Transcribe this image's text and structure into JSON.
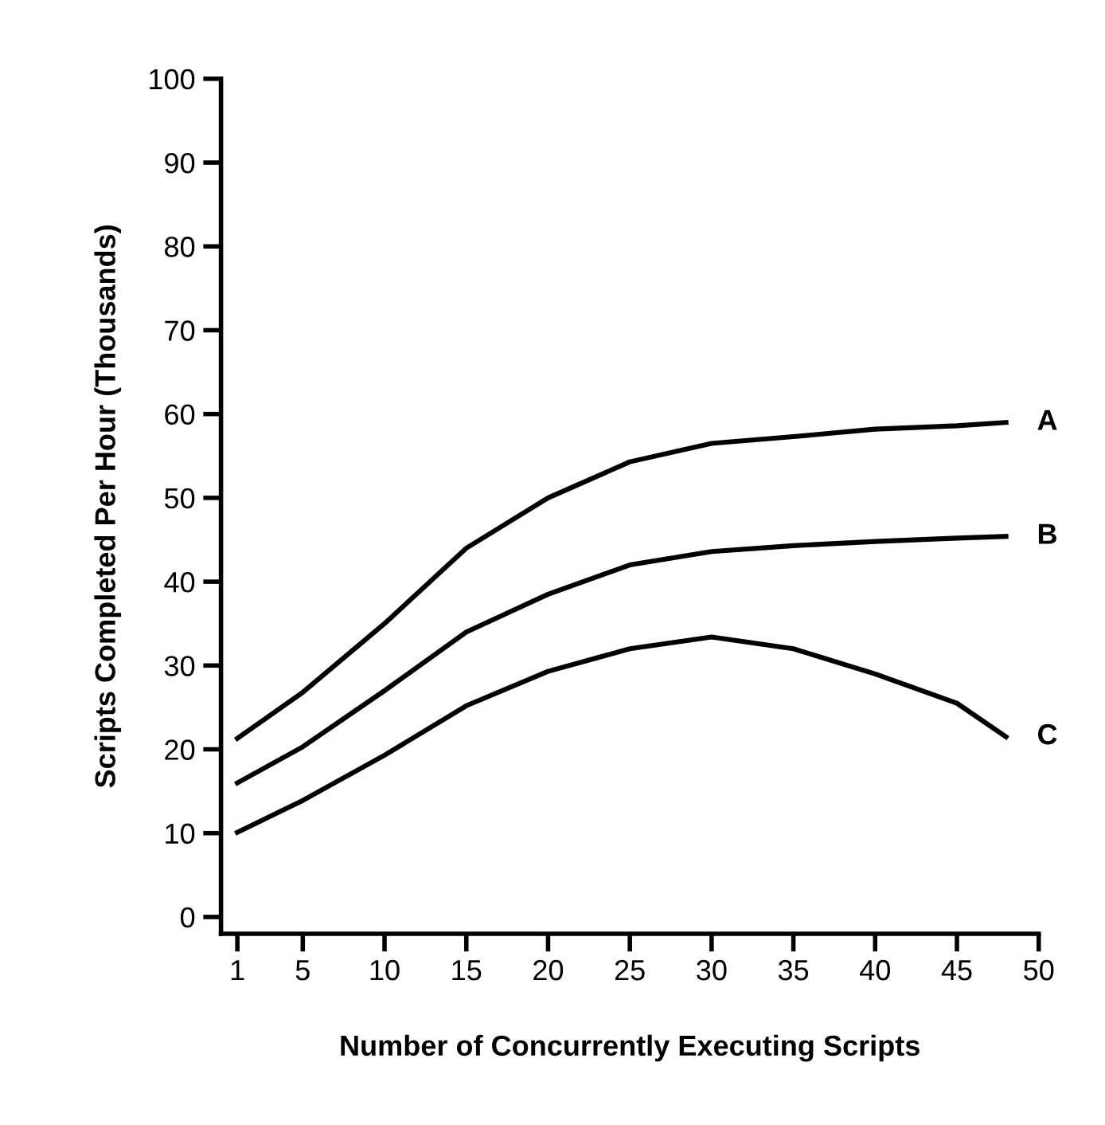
{
  "chart_data": {
    "type": "line",
    "xlabel": "Number of Concurrently Executing Scripts",
    "ylabel": "Scripts Completed Per Hour (Thousands)",
    "x": [
      1,
      5,
      10,
      15,
      20,
      25,
      30,
      35,
      40,
      45,
      48
    ],
    "series": [
      {
        "name": "A",
        "color": "#000000",
        "values": [
          21.3,
          26.8,
          35,
          44,
          50,
          54.3,
          56.5,
          57.3,
          58.2,
          58.6,
          59
        ]
      },
      {
        "name": "B",
        "color": "#000000",
        "values": [
          16,
          20.3,
          27,
          34,
          38.5,
          42,
          43.6,
          44.3,
          44.8,
          45.2,
          45.4
        ]
      },
      {
        "name": "C",
        "color": "#000000",
        "values": [
          10.1,
          13.9,
          19.3,
          25.2,
          29.3,
          32,
          33.4,
          32,
          29,
          25.5,
          21.5
        ]
      }
    ],
    "xlim": [
      0,
      50
    ],
    "xticks": [
      1,
      5,
      10,
      15,
      20,
      25,
      30,
      35,
      40,
      45,
      50
    ],
    "ylim": [
      -2,
      100
    ],
    "yticks": [
      0,
      10,
      20,
      30,
      40,
      50,
      60,
      70,
      80,
      90,
      100
    ],
    "grid": false,
    "legend": false,
    "marker": "none",
    "line_style": "solid"
  }
}
